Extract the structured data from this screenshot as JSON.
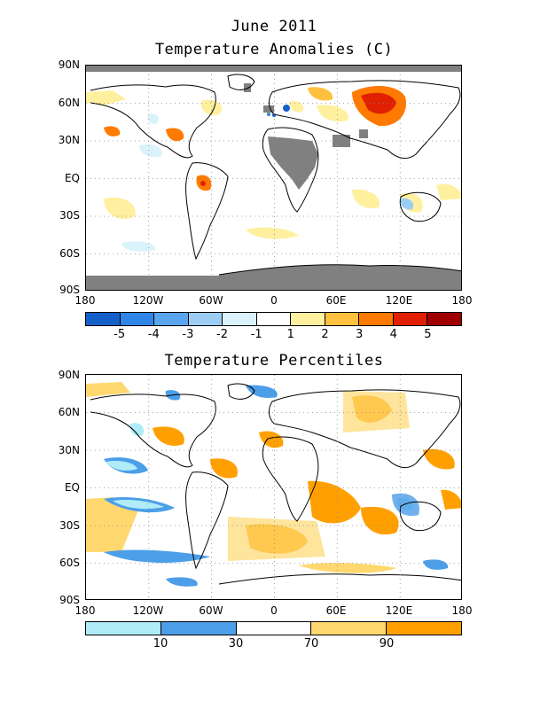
{
  "header": {
    "date": "June 2011"
  },
  "anomaly_map": {
    "title": "Temperature Anomalies (C)",
    "lat_labels": [
      "90N",
      "60N",
      "30N",
      "EQ",
      "30S",
      "60S",
      "90S"
    ],
    "lon_labels": [
      "180",
      "120W",
      "60W",
      "0",
      "60E",
      "120E",
      "180"
    ],
    "colorbar": {
      "colors": [
        "#1560c8",
        "#2f86e6",
        "#5aa6ee",
        "#9ccdf5",
        "#daf3fb",
        "#ffffff",
        "#fff0a0",
        "#ffc040",
        "#ff7a00",
        "#e02000",
        "#a00000"
      ],
      "labels": [
        "-5",
        "-4",
        "-3",
        "-2",
        "-1",
        "1",
        "2",
        "3",
        "4",
        "5"
      ]
    }
  },
  "percentile_map": {
    "title": "Temperature Percentiles",
    "lat_labels": [
      "90N",
      "60N",
      "30N",
      "EQ",
      "30S",
      "60S",
      "90S"
    ],
    "lon_labels": [
      "180",
      "120W",
      "60W",
      "0",
      "60E",
      "120E",
      "180"
    ],
    "colorbar": {
      "colors": [
        "#b0ecf8",
        "#4c9ee8",
        "#ffffff",
        "#ffd870",
        "#ffa000"
      ],
      "labels": [
        "10",
        "30",
        "70",
        "90"
      ]
    }
  }
}
